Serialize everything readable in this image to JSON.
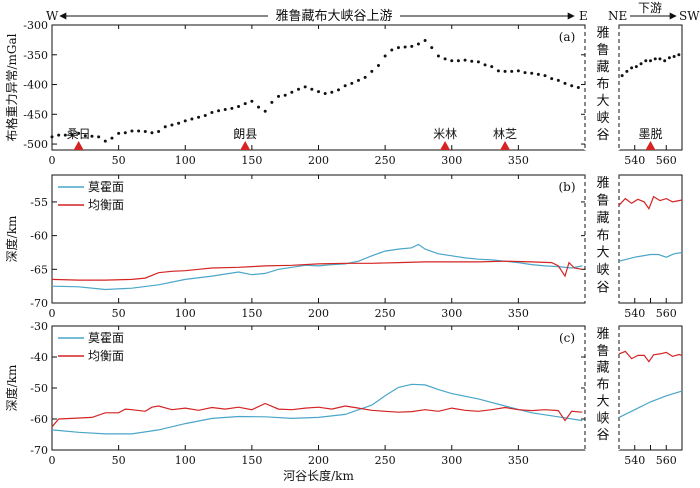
{
  "header": {
    "west": "W",
    "east": "E",
    "upstream": "雅鲁藏布大峡谷上游",
    "ne": "NE",
    "downstream": "下游",
    "sw": "SW"
  },
  "side_label": "雅鲁藏布大峡谷",
  "colors": {
    "moho": "#4aa6c8",
    "isostatic": "#d42424",
    "marker": "#d42424",
    "gravity_dots": "#111111"
  },
  "chart_data": [
    {
      "id": "a",
      "type": "scatter",
      "panel_label": "(a)",
      "ylabel": "布格重力异常/mGal",
      "xlim": [
        0,
        400
      ],
      "ylim": [
        -510,
        -300
      ],
      "yticks": [
        -500,
        -450,
        -400,
        -350,
        -300
      ],
      "xticks": [
        0,
        50,
        100,
        150,
        200,
        250,
        300,
        350
      ],
      "right_xlim": [
        530,
        570
      ],
      "right_xticks": [
        540,
        550,
        560
      ],
      "right_xtick_labels": [
        "540",
        "",
        "560"
      ],
      "markers": [
        {
          "name": "桑日",
          "x": 20
        },
        {
          "name": "朗县",
          "x": 145
        },
        {
          "name": "米林",
          "x": 295
        },
        {
          "name": "林芝",
          "x": 340
        }
      ],
      "right_markers": [
        {
          "name": "墨脱",
          "x": 550
        }
      ],
      "left_points": [
        [
          0,
          -488
        ],
        [
          5,
          -485
        ],
        [
          10,
          -485
        ],
        [
          15,
          -484
        ],
        [
          20,
          -482
        ],
        [
          25,
          -486
        ],
        [
          30,
          -487
        ],
        [
          35,
          -488
        ],
        [
          40,
          -495
        ],
        [
          45,
          -490
        ],
        [
          50,
          -482
        ],
        [
          55,
          -481
        ],
        [
          60,
          -478
        ],
        [
          65,
          -478
        ],
        [
          70,
          -479
        ],
        [
          75,
          -481
        ],
        [
          80,
          -479
        ],
        [
          85,
          -471
        ],
        [
          90,
          -468
        ],
        [
          95,
          -465
        ],
        [
          100,
          -461
        ],
        [
          105,
          -458
        ],
        [
          110,
          -455
        ],
        [
          115,
          -452
        ],
        [
          120,
          -447
        ],
        [
          125,
          -444
        ],
        [
          130,
          -442
        ],
        [
          135,
          -440
        ],
        [
          140,
          -437
        ],
        [
          145,
          -432
        ],
        [
          150,
          -428
        ],
        [
          155,
          -438
        ],
        [
          160,
          -445
        ],
        [
          165,
          -430
        ],
        [
          170,
          -420
        ],
        [
          175,
          -418
        ],
        [
          180,
          -413
        ],
        [
          185,
          -408
        ],
        [
          190,
          -404
        ],
        [
          195,
          -408
        ],
        [
          200,
          -412
        ],
        [
          205,
          -415
        ],
        [
          210,
          -413
        ],
        [
          215,
          -409
        ],
        [
          220,
          -402
        ],
        [
          225,
          -398
        ],
        [
          230,
          -393
        ],
        [
          235,
          -388
        ],
        [
          240,
          -378
        ],
        [
          245,
          -368
        ],
        [
          250,
          -352
        ],
        [
          255,
          -342
        ],
        [
          260,
          -338
        ],
        [
          265,
          -337
        ],
        [
          270,
          -336
        ],
        [
          275,
          -332
        ],
        [
          280,
          -326
        ],
        [
          285,
          -338
        ],
        [
          290,
          -352
        ],
        [
          295,
          -357
        ],
        [
          300,
          -360
        ],
        [
          305,
          -360
        ],
        [
          310,
          -359
        ],
        [
          315,
          -361
        ],
        [
          320,
          -362
        ],
        [
          325,
          -367
        ],
        [
          330,
          -370
        ],
        [
          335,
          -377
        ],
        [
          340,
          -378
        ],
        [
          345,
          -378
        ],
        [
          350,
          -377
        ],
        [
          355,
          -380
        ],
        [
          360,
          -381
        ],
        [
          365,
          -383
        ],
        [
          370,
          -385
        ],
        [
          375,
          -390
        ],
        [
          380,
          -393
        ],
        [
          385,
          -398
        ],
        [
          390,
          -402
        ],
        [
          395,
          -405
        ]
      ],
      "right_points": [
        [
          532,
          -385
        ],
        [
          535,
          -378
        ],
        [
          538,
          -372
        ],
        [
          541,
          -370
        ],
        [
          544,
          -365
        ],
        [
          547,
          -360
        ],
        [
          550,
          -360
        ],
        [
          553,
          -357
        ],
        [
          556,
          -357
        ],
        [
          559,
          -360
        ],
        [
          562,
          -355
        ],
        [
          565,
          -353
        ],
        [
          568,
          -350
        ]
      ]
    },
    {
      "id": "b",
      "type": "line",
      "panel_label": "(b)",
      "ylabel": "深度/km",
      "xlim": [
        0,
        400
      ],
      "ylim": [
        -70,
        -51
      ],
      "yticks": [
        -70,
        -65,
        -60,
        -55
      ],
      "xticks": [
        0,
        50,
        100,
        150,
        200,
        250,
        300,
        350
      ],
      "right_xlim": [
        530,
        570
      ],
      "right_xticks": [
        540,
        550,
        560
      ],
      "right_xtick_labels": [
        "540",
        "",
        "560"
      ],
      "legend": [
        "莫霍面",
        "均衡面"
      ],
      "series": [
        {
          "name": "莫霍面",
          "left": [
            [
              0,
              -67.5
            ],
            [
              20,
              -67.6
            ],
            [
              40,
              -68
            ],
            [
              60,
              -67.8
            ],
            [
              80,
              -67.3
            ],
            [
              100,
              -66.5
            ],
            [
              120,
              -66
            ],
            [
              140,
              -65.4
            ],
            [
              150,
              -65.8
            ],
            [
              160,
              -65.6
            ],
            [
              170,
              -65
            ],
            [
              180,
              -64.7
            ],
            [
              190,
              -64.4
            ],
            [
              200,
              -64.5
            ],
            [
              210,
              -64.3
            ],
            [
              220,
              -64.2
            ],
            [
              230,
              -63.8
            ],
            [
              240,
              -63
            ],
            [
              250,
              -62.3
            ],
            [
              260,
              -62
            ],
            [
              270,
              -61.8
            ],
            [
              275,
              -61.3
            ],
            [
              280,
              -62
            ],
            [
              290,
              -62.7
            ],
            [
              300,
              -63
            ],
            [
              310,
              -63.3
            ],
            [
              320,
              -63.5
            ],
            [
              330,
              -63.6
            ],
            [
              340,
              -63.8
            ],
            [
              350,
              -64
            ],
            [
              360,
              -64.3
            ],
            [
              370,
              -64.5
            ],
            [
              380,
              -64.6
            ],
            [
              390,
              -64.8
            ],
            [
              398,
              -64.5
            ]
          ],
          "right": [
            [
              530,
              -63.8
            ],
            [
              540,
              -63.2
            ],
            [
              550,
              -62.8
            ],
            [
              555,
              -62.8
            ],
            [
              560,
              -63.2
            ],
            [
              565,
              -62.7
            ],
            [
              570,
              -62.5
            ]
          ]
        },
        {
          "name": "均衡面",
          "left": [
            [
              0,
              -66.5
            ],
            [
              20,
              -66.6
            ],
            [
              40,
              -66.6
            ],
            [
              60,
              -66.5
            ],
            [
              70,
              -66.3
            ],
            [
              80,
              -65.5
            ],
            [
              90,
              -65.3
            ],
            [
              100,
              -65.2
            ],
            [
              110,
              -65
            ],
            [
              120,
              -64.8
            ],
            [
              140,
              -64.7
            ],
            [
              150,
              -64.6
            ],
            [
              160,
              -64.5
            ],
            [
              180,
              -64.4
            ],
            [
              200,
              -64.2
            ],
            [
              220,
              -64.1
            ],
            [
              240,
              -64.1
            ],
            [
              260,
              -64
            ],
            [
              280,
              -63.9
            ],
            [
              300,
              -63.9
            ],
            [
              320,
              -63.9
            ],
            [
              340,
              -63.8
            ],
            [
              360,
              -63.9
            ],
            [
              375,
              -64
            ],
            [
              380,
              -64.5
            ],
            [
              385,
              -66
            ],
            [
              388,
              -64
            ],
            [
              392,
              -64.8
            ],
            [
              398,
              -65
            ]
          ],
          "right": [
            [
              530,
              -55.5
            ],
            [
              534,
              -54.5
            ],
            [
              538,
              -55.2
            ],
            [
              542,
              -54.6
            ],
            [
              546,
              -55
            ],
            [
              549,
              -56
            ],
            [
              552,
              -54.2
            ],
            [
              556,
              -54.8
            ],
            [
              560,
              -54.5
            ],
            [
              564,
              -55
            ],
            [
              568,
              -54.8
            ],
            [
              570,
              -54.7
            ]
          ]
        }
      ]
    },
    {
      "id": "c",
      "type": "line",
      "panel_label": "(c)",
      "ylabel": "深度/km",
      "xlabel": "河谷长度/km",
      "xlim": [
        0,
        400
      ],
      "ylim": [
        -70,
        -30
      ],
      "yticks": [
        -70,
        -60,
        -50,
        -40,
        -30
      ],
      "xticks": [
        0,
        50,
        100,
        150,
        200,
        250,
        300,
        350
      ],
      "right_xlim": [
        530,
        570
      ],
      "right_xticks": [
        540,
        550,
        560
      ],
      "right_xtick_labels": [
        "540",
        "",
        "560"
      ],
      "legend": [
        "莫霍面",
        "均衡面"
      ],
      "series": [
        {
          "name": "莫霍面",
          "left": [
            [
              0,
              -63.5
            ],
            [
              20,
              -64.3
            ],
            [
              40,
              -64.8
            ],
            [
              60,
              -64.8
            ],
            [
              80,
              -63.5
            ],
            [
              100,
              -61.5
            ],
            [
              120,
              -59.8
            ],
            [
              140,
              -59.2
            ],
            [
              160,
              -59.3
            ],
            [
              180,
              -59.8
            ],
            [
              200,
              -59.5
            ],
            [
              220,
              -58.5
            ],
            [
              240,
              -55.5
            ],
            [
              250,
              -52.5
            ],
            [
              260,
              -49.8
            ],
            [
              270,
              -48.8
            ],
            [
              280,
              -49
            ],
            [
              290,
              -50.5
            ],
            [
              300,
              -51.8
            ],
            [
              320,
              -53.5
            ],
            [
              340,
              -55.8
            ],
            [
              360,
              -58
            ],
            [
              380,
              -59.3
            ],
            [
              398,
              -60.5
            ]
          ],
          "right": [
            [
              530,
              -59.5
            ],
            [
              540,
              -57
            ],
            [
              550,
              -54.5
            ],
            [
              560,
              -52.5
            ],
            [
              570,
              -51
            ]
          ]
        },
        {
          "name": "均衡面",
          "left": [
            [
              0,
              -62.5
            ],
            [
              5,
              -60
            ],
            [
              15,
              -59.8
            ],
            [
              30,
              -59.5
            ],
            [
              40,
              -58
            ],
            [
              50,
              -58
            ],
            [
              55,
              -56.8
            ],
            [
              60,
              -57
            ],
            [
              70,
              -57.5
            ],
            [
              75,
              -56.2
            ],
            [
              80,
              -55.8
            ],
            [
              90,
              -57
            ],
            [
              100,
              -56.5
            ],
            [
              110,
              -57.2
            ],
            [
              120,
              -56.3
            ],
            [
              130,
              -56.8
            ],
            [
              140,
              -56.2
            ],
            [
              150,
              -57
            ],
            [
              160,
              -55
            ],
            [
              170,
              -56.8
            ],
            [
              180,
              -57
            ],
            [
              190,
              -56.5
            ],
            [
              200,
              -56.2
            ],
            [
              210,
              -56.8
            ],
            [
              220,
              -55.8
            ],
            [
              230,
              -56.5
            ],
            [
              240,
              -57.2
            ],
            [
              250,
              -57.5
            ],
            [
              260,
              -57.8
            ],
            [
              270,
              -57.6
            ],
            [
              280,
              -57
            ],
            [
              290,
              -57.5
            ],
            [
              300,
              -56.5
            ],
            [
              310,
              -57.2
            ],
            [
              320,
              -57.5
            ],
            [
              330,
              -57
            ],
            [
              340,
              -56.3
            ],
            [
              350,
              -57
            ],
            [
              360,
              -57.3
            ],
            [
              370,
              -57
            ],
            [
              380,
              -57.3
            ],
            [
              385,
              -60.5
            ],
            [
              390,
              -57.5
            ],
            [
              398,
              -57.8
            ]
          ],
          "right": [
            [
              530,
              -39
            ],
            [
              534,
              -38.2
            ],
            [
              538,
              -40.5
            ],
            [
              542,
              -39.5
            ],
            [
              546,
              -39.5
            ],
            [
              549,
              -41.5
            ],
            [
              552,
              -39.3
            ],
            [
              556,
              -39
            ],
            [
              560,
              -38.5
            ],
            [
              564,
              -39.8
            ],
            [
              568,
              -39.2
            ],
            [
              570,
              -39.5
            ]
          ]
        }
      ]
    }
  ]
}
